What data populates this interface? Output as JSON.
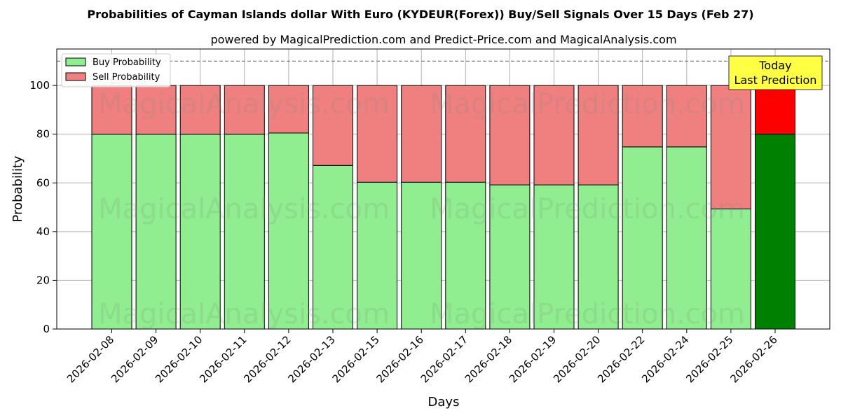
{
  "chart_data": {
    "type": "bar",
    "stacked": true,
    "title": "Probabilities of Cayman Islands dollar With Euro (KYDEUR(Forex)) Buy/Sell Signals Over 15 Days (Feb 27)",
    "subtitle": "powered by MagicalPrediction.com and Predict-Price.com and MagicalAnalysis.com",
    "xlabel": "Days",
    "ylabel": "Probability",
    "ylim": [
      0,
      115
    ],
    "yticks": [
      0,
      20,
      40,
      60,
      80,
      100
    ],
    "reference_line": 110,
    "grid": true,
    "legend_position": "top-left",
    "categories": [
      "2026-02-08",
      "2026-02-09",
      "2026-02-10",
      "2026-02-11",
      "2026-02-12",
      "2026-02-13",
      "2026-02-15",
      "2026-02-16",
      "2026-02-17",
      "2026-02-18",
      "2026-02-19",
      "2026-02-20",
      "2026-02-22",
      "2026-02-24",
      "2026-02-25",
      "2026-02-26"
    ],
    "series": [
      {
        "name": "Buy Probability",
        "color": "#90ee90",
        "highlight_color": "#008000",
        "values": [
          80,
          80,
          80,
          80,
          80.5,
          67.2,
          60.3,
          60.3,
          60.3,
          59.2,
          59.2,
          59.2,
          74.8,
          74.8,
          49.3,
          80
        ]
      },
      {
        "name": "Sell Probability",
        "color": "#f08080",
        "highlight_color": "#ff0000",
        "values": [
          20,
          20,
          20,
          20,
          19.5,
          32.8,
          39.7,
          39.7,
          39.7,
          40.8,
          40.8,
          40.8,
          25.2,
          25.2,
          50.7,
          20
        ]
      }
    ],
    "highlight_index": 15,
    "annotation": {
      "lines": [
        "Today",
        "Last Prediction"
      ],
      "color": "#ffff44",
      "target_index": 15
    },
    "watermarks": [
      "MagicalAnalysis.com",
      "MagicalPrediction.com"
    ]
  }
}
